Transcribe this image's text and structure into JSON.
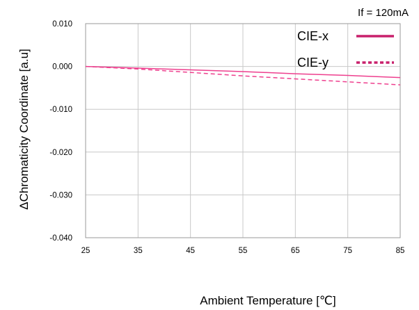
{
  "chart_data": {
    "type": "line",
    "condition": "If = 120mA",
    "xlabel": "Ambient Temperature [℃]",
    "ylabel": "ΔChromaticity Coordinate [a.u]",
    "xlim": [
      25,
      85
    ],
    "ylim": [
      -0.04,
      0.01
    ],
    "xticks": [
      "25",
      "35",
      "45",
      "55",
      "65",
      "75",
      "85"
    ],
    "yticks": [
      "0.010",
      "0.000",
      "-0.010",
      "-0.020",
      "-0.030",
      "-0.040"
    ],
    "grid": true,
    "legend_position": "top-right",
    "series": [
      {
        "name": "CIE-x",
        "style": "solid",
        "color": "#ee3f8e",
        "x": [
          25,
          35,
          45,
          55,
          65,
          75,
          85
        ],
        "y": [
          0.0,
          -0.0004,
          -0.0008,
          -0.0012,
          -0.0017,
          -0.0021,
          -0.0026
        ]
      },
      {
        "name": "CIE-y",
        "style": "dashed",
        "color": "#ee3f8e",
        "x": [
          25,
          35,
          45,
          55,
          65,
          75,
          85
        ],
        "y": [
          0.0,
          -0.0006,
          -0.0014,
          -0.0022,
          -0.0029,
          -0.0036,
          -0.0043
        ]
      }
    ]
  },
  "legend_colors": {
    "CIE-x": "#c8206c",
    "CIE-y": "#c8206c"
  }
}
